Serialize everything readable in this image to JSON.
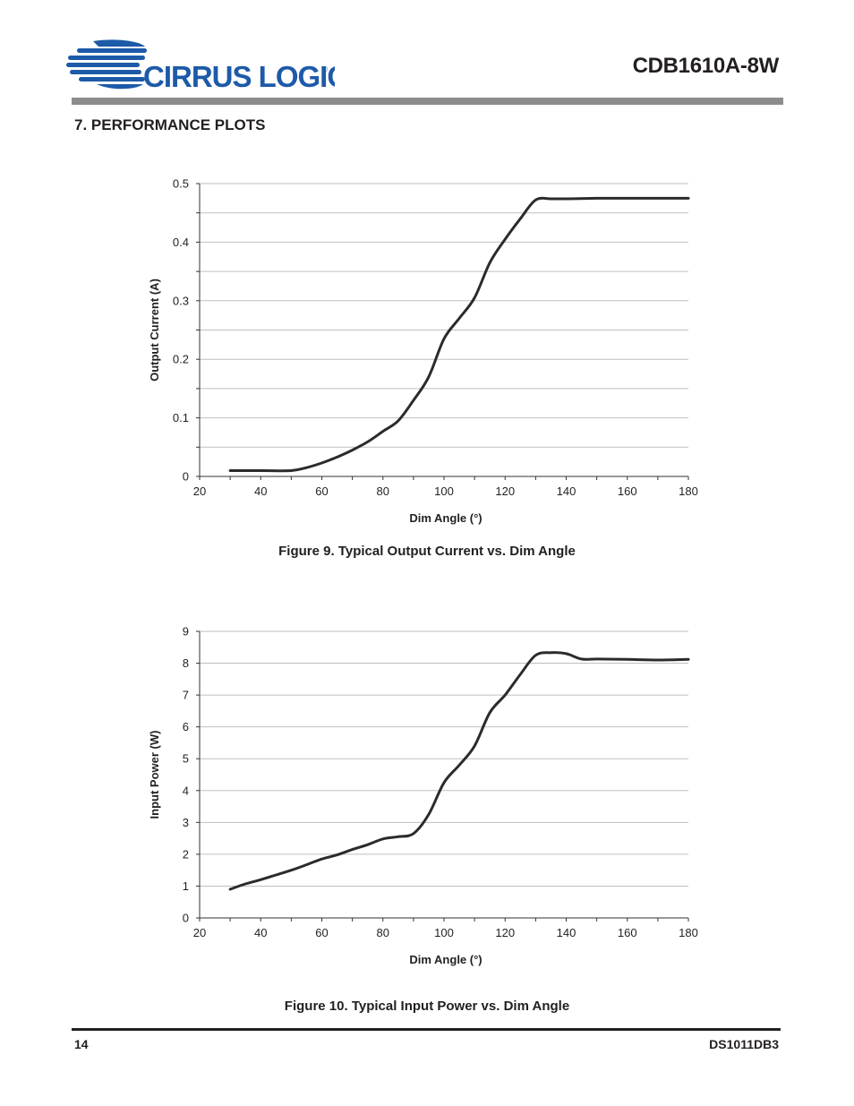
{
  "header": {
    "brand": "CIRRUS LOGIC",
    "doc_title": "CDB1610A-8W"
  },
  "section_heading": "7.  PERFORMANCE PLOTS",
  "colors": {
    "header_bar": "#8c8c8c",
    "logo_blue": "#1d5aa8",
    "curve": "#2b2b2b",
    "grid": "#bfbfbf"
  },
  "chart_data": [
    {
      "type": "line",
      "title": "",
      "caption": "Figure 9.  Typical Output Current vs. Dim Angle",
      "xlabel": "Dim Angle (°)",
      "ylabel": "Output Current (A)",
      "xlim": [
        20,
        180
      ],
      "ylim": [
        0,
        0.5
      ],
      "x_ticks": [
        20,
        40,
        60,
        80,
        100,
        120,
        140,
        160,
        180
      ],
      "y_ticks": [
        0,
        0.1,
        0.2,
        0.3,
        0.4,
        0.5
      ],
      "y_tick_labels": [
        "0",
        "0.1",
        "0.2",
        "0.3",
        "0.4",
        "0.5"
      ],
      "grid": true,
      "series": [
        {
          "x": [
            30,
            40,
            50,
            55,
            60,
            65,
            70,
            75,
            80,
            85,
            90,
            95,
            100,
            105,
            110,
            115,
            120,
            125,
            130,
            135,
            140,
            150,
            160,
            170,
            180
          ],
          "y": [
            0.01,
            0.01,
            0.01,
            0.015,
            0.023,
            0.033,
            0.045,
            0.059,
            0.077,
            0.095,
            0.13,
            0.17,
            0.235,
            0.27,
            0.305,
            0.365,
            0.405,
            0.44,
            0.472,
            0.474,
            0.474,
            0.475,
            0.475,
            0.475,
            0.475
          ]
        }
      ]
    },
    {
      "type": "line",
      "title": "",
      "caption": "Figure 10.  Typical Input Power vs. Dim Angle",
      "xlabel": "Dim Angle (°)",
      "ylabel": "Input Power (W)",
      "xlim": [
        20,
        180
      ],
      "ylim": [
        0,
        9
      ],
      "x_ticks": [
        20,
        40,
        60,
        80,
        100,
        120,
        140,
        160,
        180
      ],
      "y_ticks": [
        0,
        1,
        2,
        3,
        4,
        5,
        6,
        7,
        8,
        9
      ],
      "y_tick_labels": [
        "0",
        "1",
        "2",
        "3",
        "4",
        "5",
        "6",
        "7",
        "8",
        "9"
      ],
      "grid": true,
      "series": [
        {
          "x": [
            30,
            35,
            40,
            45,
            50,
            55,
            60,
            65,
            70,
            75,
            80,
            85,
            90,
            95,
            100,
            105,
            110,
            115,
            120,
            125,
            130,
            135,
            140,
            145,
            150,
            160,
            170,
            180
          ],
          "y": [
            0.9,
            1.07,
            1.2,
            1.35,
            1.5,
            1.67,
            1.85,
            1.98,
            2.15,
            2.3,
            2.48,
            2.55,
            2.65,
            3.25,
            4.25,
            4.8,
            5.4,
            6.45,
            7.0,
            7.65,
            8.25,
            8.33,
            8.3,
            8.13,
            8.13,
            8.12,
            8.1,
            8.12
          ]
        }
      ]
    }
  ],
  "footer": {
    "page_number": "14",
    "doc_id": "DS1011DB3"
  }
}
